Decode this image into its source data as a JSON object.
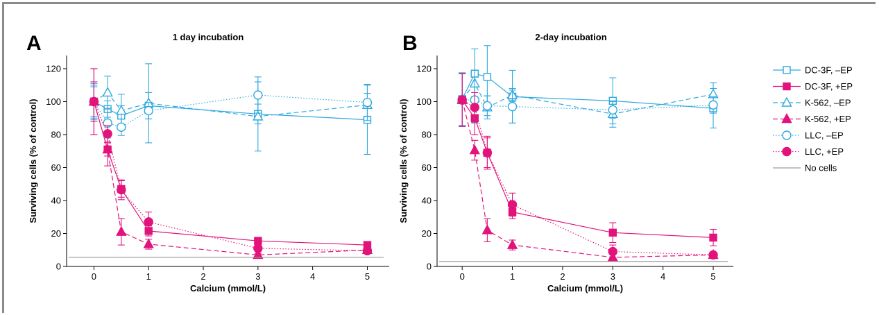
{
  "chart_data": [
    {
      "panel": "A",
      "title": "1 day incubation",
      "type": "line",
      "xlabel": "Calcium (mmol/L)",
      "ylabel": "Surviving cells (% of control)",
      "xlim": [
        -0.5,
        5.4
      ],
      "ylim": [
        0,
        128
      ],
      "xticks": [
        0,
        1,
        2,
        3,
        4,
        5
      ],
      "yticks": [
        0,
        20,
        40,
        60,
        80,
        100,
        120
      ],
      "x": [
        0,
        0.25,
        0.5,
        1,
        3,
        5
      ],
      "series": [
        {
          "name": "DC-3F, –EP",
          "values": [
            100,
            95.5,
            91.5,
            97.5,
            92.5,
            89
          ],
          "err": [
            11,
            5,
            6,
            8,
            6,
            21
          ]
        },
        {
          "name": "DC-3F, +EP",
          "values": [
            100,
            71,
            47,
            21.5,
            15.5,
            13
          ],
          "err": [
            20,
            4,
            5,
            3,
            2,
            2
          ]
        },
        {
          "name": "K-562, –EP",
          "values": [
            100,
            105.5,
            94.5,
            99,
            91,
            98
          ],
          "err": [
            10,
            10,
            10,
            24,
            21,
            7
          ]
        },
        {
          "name": "K-562, +EP",
          "values": [
            100,
            71,
            21,
            13.5,
            7,
            10
          ],
          "err": [
            12,
            10,
            8,
            3,
            1,
            1
          ]
        },
        {
          "name": "LLC, –EP",
          "values": [
            100,
            87,
            84.5,
            94.5,
            104,
            99.5
          ],
          "err": [
            9,
            9,
            5,
            5,
            11,
            11
          ]
        },
        {
          "name": "LLC, +EP",
          "values": [
            100,
            80.5,
            46.5,
            27,
            11,
            9.5
          ],
          "err": [
            20,
            5,
            6,
            6,
            3,
            1
          ]
        },
        {
          "name": "No cells",
          "values": [
            5.5,
            5.5,
            5.5,
            5.5,
            5.5,
            5.5
          ],
          "err": [
            0,
            0,
            0,
            0,
            0,
            0
          ]
        }
      ]
    },
    {
      "panel": "B",
      "title": "2-day incubation",
      "type": "line",
      "xlabel": "Calcium (mmol/L)",
      "ylabel": "Surviving cells (% of control)",
      "xlim": [
        -0.5,
        5.4
      ],
      "ylim": [
        0,
        128
      ],
      "xticks": [
        0,
        1,
        2,
        3,
        4,
        5
      ],
      "yticks": [
        0,
        20,
        40,
        60,
        80,
        100,
        120
      ],
      "x": [
        0,
        0.25,
        0.5,
        1,
        3,
        5
      ],
      "series": [
        {
          "name": "DC-3F, –EP",
          "values": [
            101.5,
            117,
            115,
            103,
            100.5,
            96
          ],
          "err": [
            16,
            15,
            19,
            16,
            14,
            12
          ]
        },
        {
          "name": "DC-3F, +EP",
          "values": [
            101,
            90,
            69,
            33,
            20.5,
            17.5
          ],
          "err": [
            16,
            10,
            9,
            4,
            6,
            5
          ]
        },
        {
          "name": "K-562, –EP",
          "values": [
            101.5,
            111,
            96.5,
            104,
            92.5,
            104.5
          ],
          "err": [
            16,
            8,
            7,
            4,
            8,
            7
          ]
        },
        {
          "name": "K-562, +EP",
          "values": [
            101,
            70.5,
            22,
            13,
            5.5,
            7
          ],
          "err": [
            16,
            6,
            7,
            3,
            2,
            1
          ]
        },
        {
          "name": "LLC, –EP",
          "values": [
            101,
            101,
            97.5,
            97,
            95,
            98
          ],
          "err": [
            16,
            14,
            6,
            10,
            5,
            5
          ]
        },
        {
          "name": "LLC, +EP",
          "values": [
            101,
            96.5,
            69,
            37.5,
            9,
            7
          ],
          "err": [
            16,
            9,
            10,
            7,
            4,
            1
          ]
        },
        {
          "name": "No cells",
          "values": [
            3,
            3,
            3,
            3,
            3,
            3
          ],
          "err": [
            0,
            0,
            0,
            0,
            0,
            0
          ]
        }
      ]
    }
  ],
  "legend_placement": "right",
  "legend": [
    {
      "label": "DC-3F, –EP",
      "color": "#2fa9df",
      "dash": "solid",
      "marker": "square",
      "filled": false
    },
    {
      "label": "DC-3F, +EP",
      "color": "#e2137b",
      "dash": "solid",
      "marker": "square",
      "filled": true
    },
    {
      "label": "K-562, –EP",
      "color": "#2fa9df",
      "dash": "dashed",
      "marker": "triangle",
      "filled": false
    },
    {
      "label": "K-562, +EP",
      "color": "#e2137b",
      "dash": "dashed",
      "marker": "triangle",
      "filled": true
    },
    {
      "label": "LLC, –EP",
      "color": "#2fa9df",
      "dash": "dotted",
      "marker": "circle",
      "filled": false
    },
    {
      "label": "LLC, +EP",
      "color": "#e2137b",
      "dash": "dotted",
      "marker": "circle",
      "filled": true
    },
    {
      "label": "No cells",
      "color": "#9a9a9a",
      "dash": "solid",
      "marker": "none",
      "filled": false
    }
  ],
  "colors": {
    "minus_ep": "#2fa9df",
    "plus_ep": "#e2137b",
    "no_cells": "#9a9a9a",
    "frame": "#8a8a8a"
  }
}
